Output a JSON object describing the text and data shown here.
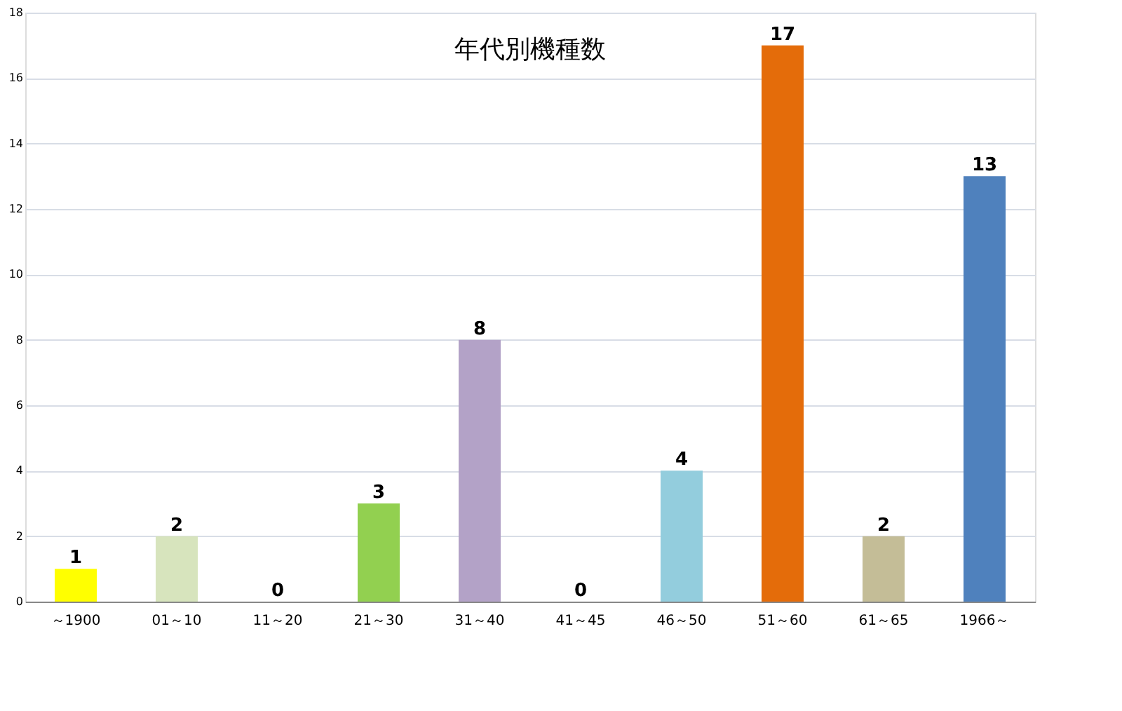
{
  "chart_data": {
    "type": "bar",
    "title": "年代別機種数",
    "categories": [
      "～1900",
      "01～10",
      "11～20",
      "21～30",
      "31～40",
      "41～45",
      "46～50",
      "51～60",
      "61～65",
      "1966～"
    ],
    "values": [
      1,
      2,
      0,
      3,
      8,
      0,
      4,
      17,
      2,
      13
    ],
    "colors": [
      "#ffff00",
      "#d7e4bd",
      "#4f81bd",
      "#92d050",
      "#b3a2c7",
      "#4f81bd",
      "#93cddd",
      "#e46c0a",
      "#c4bd97",
      "#4f81bd"
    ],
    "ylim": [
      0,
      18
    ],
    "yticks": [
      0,
      2,
      4,
      6,
      8,
      10,
      12,
      14,
      16,
      18
    ],
    "grid": "y",
    "data_labels": true,
    "legend": false
  }
}
